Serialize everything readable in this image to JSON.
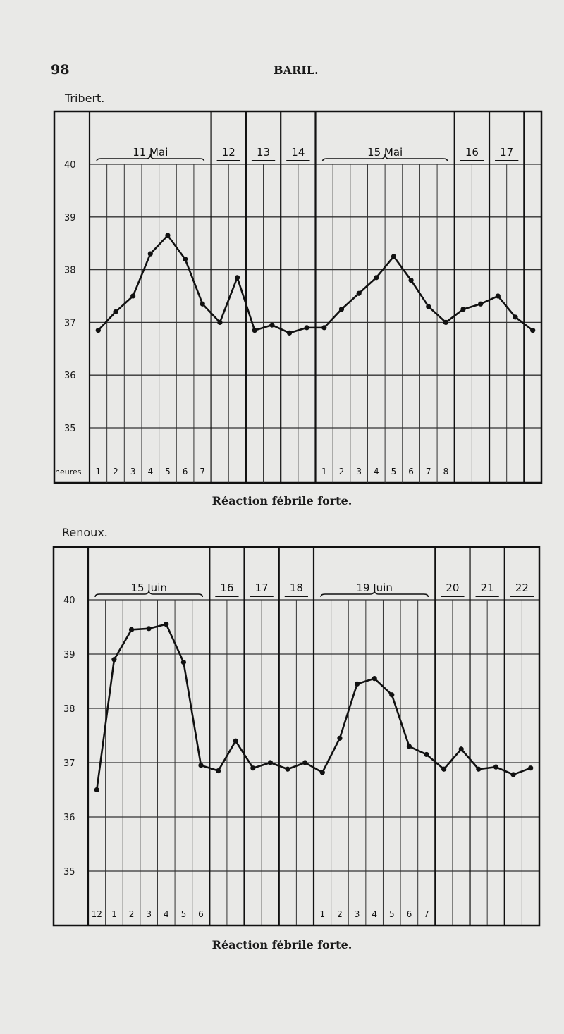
{
  "page": {
    "number": "98",
    "running_head": "BARIL."
  },
  "chart_data": [
    {
      "type": "line",
      "title": "Tribert.",
      "caption": "Réaction fébrile forte.",
      "hours_label": "heures",
      "ylim": [
        34,
        40.4
      ],
      "y_ticks": [
        "40",
        "39",
        "38",
        "37",
        "36",
        "35"
      ],
      "days": [
        {
          "label": "11 Mai",
          "hours": [
            "1",
            "2",
            "3",
            "4",
            "5",
            "6",
            "7"
          ]
        },
        {
          "label": "12",
          "hours": [
            "",
            ""
          ]
        },
        {
          "label": "13",
          "hours": [
            "",
            ""
          ]
        },
        {
          "label": "14",
          "hours": [
            "",
            ""
          ]
        },
        {
          "label": "15 Mai",
          "hours": [
            "1",
            "2",
            "3",
            "4",
            "5",
            "6",
            "7",
            "8"
          ]
        },
        {
          "label": "16",
          "hours": [
            "",
            ""
          ]
        },
        {
          "label": "17",
          "hours": [
            "",
            ""
          ]
        },
        {
          "label": "",
          "hours": [
            ""
          ]
        }
      ],
      "values": [
        36.85,
        37.2,
        37.5,
        38.3,
        38.65,
        38.2,
        37.35,
        37.0,
        37.85,
        36.85,
        36.95,
        36.8,
        36.9,
        36.9,
        37.25,
        37.55,
        37.85,
        38.25,
        37.8,
        37.3,
        37.0,
        37.25,
        37.35,
        37.5,
        37.1,
        36.85
      ],
      "grid": true,
      "line_color": "#111111"
    },
    {
      "type": "line",
      "title": "Renoux.",
      "caption": "Réaction fébrile forte.",
      "hours_label": "",
      "ylim": [
        34,
        40.4
      ],
      "y_ticks": [
        "40",
        "39",
        "38",
        "37",
        "36",
        "35"
      ],
      "days": [
        {
          "label": "15 Juin",
          "hours": [
            "12",
            "1",
            "2",
            "3",
            "4",
            "5",
            "6"
          ]
        },
        {
          "label": "16",
          "hours": [
            "",
            ""
          ]
        },
        {
          "label": "17",
          "hours": [
            "",
            ""
          ]
        },
        {
          "label": "18",
          "hours": [
            "",
            ""
          ]
        },
        {
          "label": "19 Juin",
          "hours": [
            "1",
            "2",
            "3",
            "4",
            "5",
            "6",
            "7"
          ]
        },
        {
          "label": "20",
          "hours": [
            "",
            ""
          ]
        },
        {
          "label": "21",
          "hours": [
            "",
            ""
          ]
        },
        {
          "label": "22",
          "hours": [
            "",
            ""
          ]
        }
      ],
      "values": [
        36.5,
        38.9,
        39.45,
        39.47,
        39.55,
        38.85,
        36.95,
        36.85,
        37.4,
        36.9,
        37.0,
        36.88,
        37.0,
        36.82,
        37.45,
        38.45,
        38.55,
        38.25,
        37.3,
        37.15,
        36.88,
        37.25,
        36.88,
        36.92,
        36.78,
        36.9
      ],
      "grid": true,
      "line_color": "#111111"
    }
  ]
}
